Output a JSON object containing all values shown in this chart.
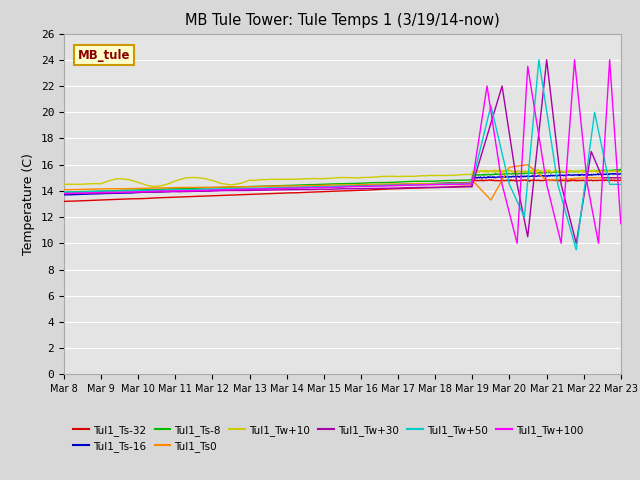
{
  "title": "MB Tule Tower: Tule Temps 1 (3/19/14-now)",
  "ylabel": "Temperature (C)",
  "ylim": [
    0,
    26
  ],
  "yticks": [
    0,
    2,
    4,
    6,
    8,
    10,
    12,
    14,
    16,
    18,
    20,
    22,
    24,
    26
  ],
  "fig_bg": "#d8d8d8",
  "plot_bg": "#e4e4e4",
  "grid_color": "#ffffff",
  "legend_box_label": "MB_tule",
  "legend_box_facecolor": "#ffffcc",
  "legend_box_edgecolor": "#cc9900",
  "x_tick_labels": [
    "Mar 8",
    "Mar 9",
    "Mar 10",
    "Mar 11",
    "Mar 12",
    "Mar 13",
    "Mar 14",
    "Mar 15",
    "Mar 16",
    "Mar 17",
    "Mar 18",
    "Mar 19",
    "Mar 20",
    "Mar 21",
    "Mar 22",
    "Mar 23"
  ],
  "series": [
    {
      "label": "Tul1_Ts-32",
      "color": "#dd0000"
    },
    {
      "label": "Tul1_Ts-16",
      "color": "#0000cc"
    },
    {
      "label": "Tul1_Ts-8",
      "color": "#00bb00"
    },
    {
      "label": "Tul1_Ts0",
      "color": "#ff8800"
    },
    {
      "label": "Tul1_Tw+10",
      "color": "#cccc00"
    },
    {
      "label": "Tul1_Tw+30",
      "color": "#aa00aa"
    },
    {
      "label": "Tul1_Tw+50",
      "color": "#00cccc"
    },
    {
      "label": "Tul1_Tw+100",
      "color": "#ff00ff"
    }
  ]
}
